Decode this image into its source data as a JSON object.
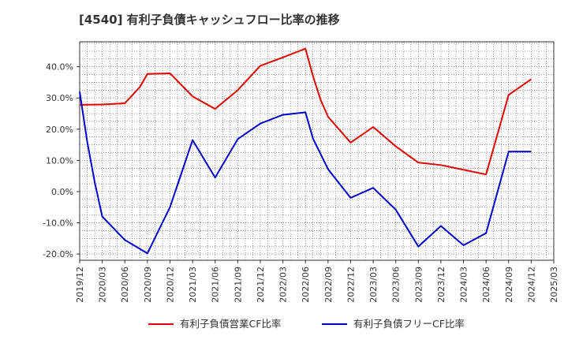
{
  "chart_data": {
    "type": "line",
    "title": "[4540]  有利子負債キャッシュフロー比率の推移",
    "xlabel": "",
    "ylabel": "",
    "x_ticks": [
      "2019/12",
      "2020/03",
      "2020/06",
      "2020/09",
      "2020/12",
      "2021/03",
      "2021/06",
      "2021/09",
      "2021/12",
      "2022/03",
      "2022/06",
      "2022/09",
      "2022/12",
      "2023/03",
      "2023/06",
      "2023/09",
      "2023/12",
      "2024/03",
      "2024/06",
      "2024/09",
      "2024/12",
      "2025/03"
    ],
    "y_ticks": [
      "40.0%",
      "30.0%",
      "20.0%",
      "10.0%",
      "0.0%",
      "-10.0%",
      "-20.0%"
    ],
    "y_tick_values": [
      40,
      30,
      20,
      10,
      0,
      -10,
      -20
    ],
    "ylim": [
      -22,
      48
    ],
    "grid": true,
    "legend_position": "bottom-center",
    "series": [
      {
        "name": "有利子負債営業CF比率",
        "color": "#e00000",
        "points": [
          [
            "2019/12",
            27.8
          ],
          [
            "2020/03",
            27.9
          ],
          [
            "2020/06",
            28.3
          ],
          [
            "2020/08",
            33.5
          ],
          [
            "2020/09",
            37.7
          ],
          [
            "2020/12",
            37.9
          ],
          [
            "2021/03",
            30.5
          ],
          [
            "2021/06",
            26.5
          ],
          [
            "2021/09",
            32.5
          ],
          [
            "2021/12",
            40.3
          ],
          [
            "2022/03",
            43.0
          ],
          [
            "2022/06",
            45.8
          ],
          [
            "2022/07",
            37.0
          ],
          [
            "2022/08",
            29.5
          ],
          [
            "2022/09",
            24.0
          ],
          [
            "2022/12",
            15.7
          ],
          [
            "2023/03",
            20.7
          ],
          [
            "2023/06",
            14.5
          ],
          [
            "2023/09",
            9.3
          ],
          [
            "2023/12",
            8.5
          ],
          [
            "2024/03",
            7.0
          ],
          [
            "2024/06",
            5.5
          ],
          [
            "2024/09",
            31.0
          ],
          [
            "2024/12",
            36.0
          ]
        ]
      },
      {
        "name": "有利子負債フリーCF比率",
        "color": "#0000cc",
        "points": [
          [
            "2019/12",
            32.0
          ],
          [
            "2020/01",
            16.0
          ],
          [
            "2020/02",
            3.0
          ],
          [
            "2020/03",
            -8.0
          ],
          [
            "2020/06",
            -15.5
          ],
          [
            "2020/09",
            -19.8
          ],
          [
            "2020/12",
            -5.0
          ],
          [
            "2021/03",
            16.5
          ],
          [
            "2021/06",
            4.5
          ],
          [
            "2021/09",
            16.8
          ],
          [
            "2021/12",
            21.8
          ],
          [
            "2022/03",
            24.6
          ],
          [
            "2022/06",
            25.4
          ],
          [
            "2022/07",
            17.0
          ],
          [
            "2022/09",
            7.2
          ],
          [
            "2022/12",
            -2.0
          ],
          [
            "2023/03",
            1.2
          ],
          [
            "2023/06",
            -5.8
          ],
          [
            "2023/09",
            -17.6
          ],
          [
            "2023/12",
            -11.0
          ],
          [
            "2024/03",
            -17.2
          ],
          [
            "2024/06",
            -13.3
          ],
          [
            "2024/09",
            12.8
          ],
          [
            "2024/12",
            12.8
          ]
        ]
      }
    ]
  }
}
